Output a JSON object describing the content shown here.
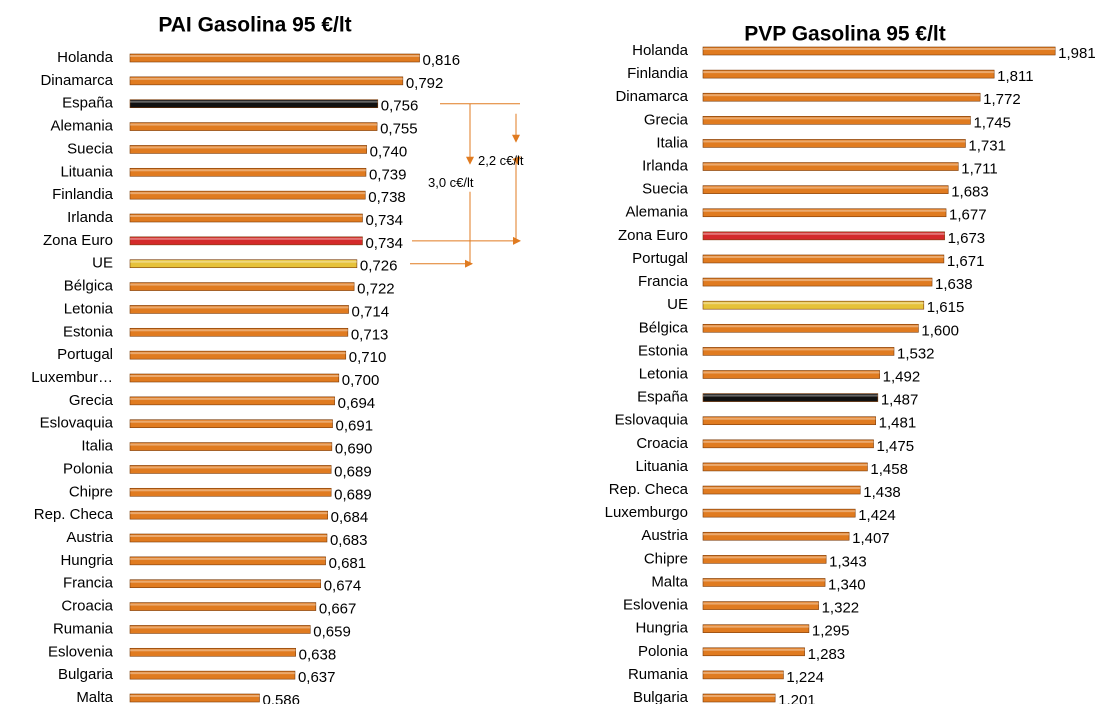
{
  "chart_data": [
    {
      "type": "hbar",
      "title": "PAI Gasolina 95 €/lt",
      "categories": [
        "Holanda",
        "Dinamarca",
        "España",
        "Alemania",
        "Suecia",
        "Lituania",
        "Finlandia",
        "Irlanda",
        "Zona Euro",
        "UE",
        "Bélgica",
        "Letonia",
        "Estonia",
        "Portugal",
        "Luxembur…",
        "Grecia",
        "Eslovaquia",
        "Italia",
        "Polonia",
        "Chipre",
        "Rep. Checa",
        "Austria",
        "Hungria",
        "Francia",
        "Croacia",
        "Rumania",
        "Eslovenia",
        "Bulgaria",
        "Malta"
      ],
      "values": [
        0.816,
        0.792,
        0.756,
        0.755,
        0.74,
        0.739,
        0.738,
        0.734,
        0.734,
        0.726,
        0.722,
        0.714,
        0.713,
        0.71,
        0.7,
        0.694,
        0.691,
        0.69,
        0.689,
        0.689,
        0.684,
        0.683,
        0.681,
        0.674,
        0.667,
        0.659,
        0.638,
        0.637,
        0.586
      ],
      "value_labels": [
        "0,816",
        "0,792",
        "0,756",
        "0,755",
        "0,740",
        "0,739",
        "0,738",
        "0,734",
        "0,734",
        "0,726",
        "0,722",
        "0,714",
        "0,713",
        "0,710",
        "0,700",
        "0,694",
        "0,691",
        "0,690",
        "0,689",
        "0,689",
        "0,684",
        "0,683",
        "0,681",
        "0,674",
        "0,667",
        "0,659",
        "0,638",
        "0,637",
        "0,586"
      ],
      "colors": [
        "#e07b20",
        "#e07b20",
        "#111111",
        "#e07b20",
        "#e07b20",
        "#e07b20",
        "#e07b20",
        "#e07b20",
        "#d42a2a",
        "#e6c23a",
        "#e07b20",
        "#e07b20",
        "#e07b20",
        "#e07b20",
        "#e07b20",
        "#e07b20",
        "#e07b20",
        "#e07b20",
        "#e07b20",
        "#e07b20",
        "#e07b20",
        "#e07b20",
        "#e07b20",
        "#e07b20",
        "#e07b20",
        "#e07b20",
        "#e07b20",
        "#e07b20",
        "#e07b20"
      ],
      "xlim": [
        0.4,
        0.9
      ],
      "annotations": [
        "2,2 c€/lt",
        "3,0 c€/lt"
      ]
    },
    {
      "type": "hbar",
      "title": "PVP Gasolina 95 €/lt",
      "categories": [
        "Holanda",
        "Finlandia",
        "Dinamarca",
        "Grecia",
        "Italia",
        "Irlanda",
        "Suecia",
        "Alemania",
        "Zona Euro",
        "Portugal",
        "Francia",
        "UE",
        "Bélgica",
        "Estonia",
        "Letonia",
        "España",
        "Eslovaquia",
        "Croacia",
        "Lituania",
        "Rep. Checa",
        "Luxemburgo",
        "Austria",
        "Chipre",
        "Malta",
        "Eslovenia",
        "Hungria",
        "Polonia",
        "Rumania",
        "Bulgaria"
      ],
      "values": [
        1.981,
        1.811,
        1.772,
        1.745,
        1.731,
        1.711,
        1.683,
        1.677,
        1.673,
        1.671,
        1.638,
        1.615,
        1.6,
        1.532,
        1.492,
        1.487,
        1.481,
        1.475,
        1.458,
        1.438,
        1.424,
        1.407,
        1.343,
        1.34,
        1.322,
        1.295,
        1.283,
        1.224,
        1.201
      ],
      "value_labels": [
        "1,981",
        "1,811",
        "1,772",
        "1,745",
        "1,731",
        "1,711",
        "1,683",
        "1,677",
        "1,673",
        "1,671",
        "1,638",
        "1,615",
        "1,600",
        "1,532",
        "1,492",
        "1,487",
        "1,481",
        "1,475",
        "1,458",
        "1,438",
        "1,424",
        "1,407",
        "1,343",
        "1,340",
        "1,322",
        "1,295",
        "1,283",
        "1,224",
        "1,201"
      ],
      "colors": [
        "#e07b20",
        "#e07b20",
        "#e07b20",
        "#e07b20",
        "#e07b20",
        "#e07b20",
        "#e07b20",
        "#e07b20",
        "#d42a2a",
        "#e07b20",
        "#e07b20",
        "#e6c23a",
        "#e07b20",
        "#e07b20",
        "#e07b20",
        "#111111",
        "#e07b20",
        "#e07b20",
        "#e07b20",
        "#e07b20",
        "#e07b20",
        "#e07b20",
        "#e07b20",
        "#e07b20",
        "#e07b20",
        "#e07b20",
        "#e07b20",
        "#e07b20",
        "#e07b20"
      ],
      "xlim": [
        1.0,
        2.0
      ]
    }
  ]
}
